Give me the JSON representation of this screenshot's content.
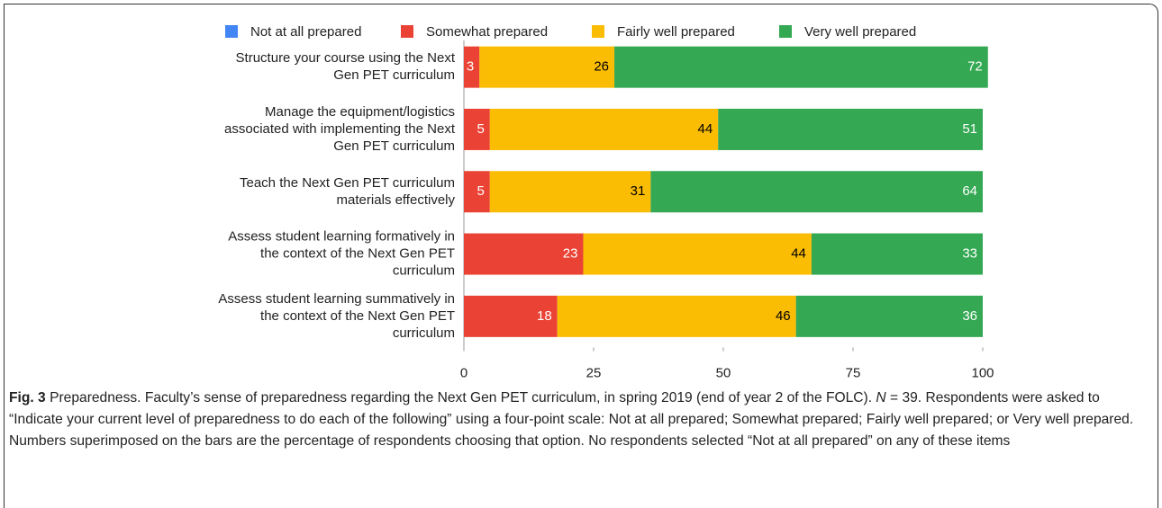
{
  "chart_data": {
    "type": "stacked_barh",
    "categories": [
      "Structure your course using the Next Gen PET curriculum",
      "Manage the equipment/logistics associated with implementing the Next Gen PET curriculum",
      "Teach the Next Gen PET curriculum materials effectively",
      "Assess student learning formatively in the context of the Next Gen PET curriculum",
      "Assess student learning summatively in the context of the Next Gen PET curriculum"
    ],
    "series": [
      {
        "name": "Not at all prepared",
        "color": "#4285f4",
        "label_color": "#ffffff",
        "values": [
          0,
          0,
          0,
          0,
          0
        ]
      },
      {
        "name": "Somewhat prepared",
        "color": "#ea4335",
        "label_color": "#ffffff",
        "values": [
          3,
          5,
          5,
          23,
          18
        ]
      },
      {
        "name": "Fairly well prepared",
        "color": "#fbbc04",
        "label_color": "#000000",
        "values": [
          26,
          44,
          31,
          44,
          46
        ]
      },
      {
        "name": "Very well prepared",
        "color": "#34a853",
        "label_color": "#ffffff",
        "values": [
          72,
          51,
          64,
          33,
          36
        ]
      }
    ],
    "xlim": [
      0,
      100
    ],
    "xticks": [
      0,
      25,
      50,
      75,
      100
    ],
    "legend": "top"
  },
  "caption": {
    "label": "Fig. 3",
    "parts": [
      "Preparedness. Faculty’s sense of preparedness regarding the Next Gen PET curriculum, in spring 2019 (end of year 2 of the FOLC). ",
      "N",
      " = 39. Respondents were asked to “Indicate your current level of preparedness to do each of the following” using a four-point scale: Not at all prepared; Somewhat prepared; Fairly well prepared; or Very well prepared. Numbers superimposed on the bars are the percentage of respondents choosing that option. No respondents selected “Not at all prepared” on any of these items"
    ]
  }
}
